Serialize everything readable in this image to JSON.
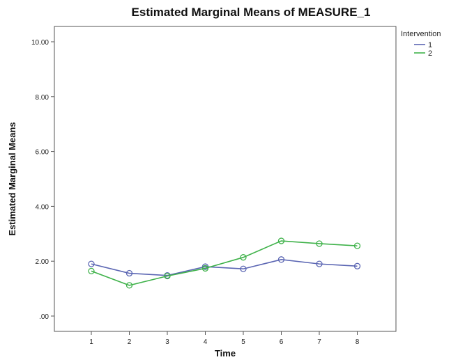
{
  "chart_data": {
    "type": "line",
    "title": "Estimated Marginal Means of MEASURE_1",
    "xlabel": "Time",
    "ylabel": "Estimated Marginal Means",
    "categories": [
      "1",
      "2",
      "3",
      "4",
      "5",
      "6",
      "7",
      "8"
    ],
    "ylim": [
      0,
      10.5
    ],
    "yticks": [
      0,
      2,
      4,
      6,
      8,
      10
    ],
    "ytick_labels": [
      ".00",
      "2.00",
      "4.00",
      "6.00",
      "8.00",
      "10.00"
    ],
    "grid": false,
    "legend": {
      "title": "Intervention",
      "placement": "top-right"
    },
    "series": [
      {
        "name": "1",
        "color": "#5b66b3",
        "values": [
          1.9,
          1.56,
          1.48,
          1.8,
          1.72,
          2.06,
          1.9,
          1.82
        ]
      },
      {
        "name": "2",
        "color": "#3fb24a",
        "values": [
          1.64,
          1.12,
          1.46,
          1.74,
          2.14,
          2.74,
          2.64,
          2.56
        ]
      }
    ]
  }
}
